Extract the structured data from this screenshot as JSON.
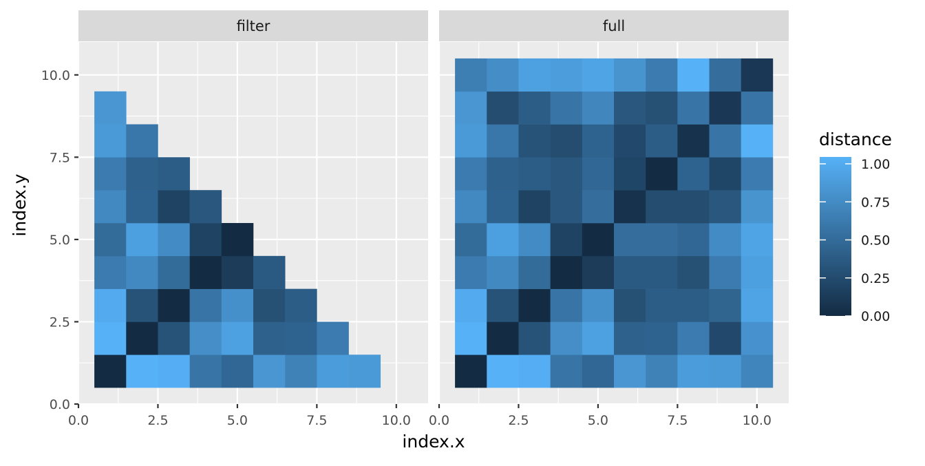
{
  "chart_data": {
    "type": "heatmap",
    "xlabel": "index.x",
    "ylabel": "index.y",
    "xlim": [
      0,
      11
    ],
    "ylim": [
      0,
      11
    ],
    "x_ticks": [
      "0.0",
      "2.5",
      "5.0",
      "7.5",
      "10.0"
    ],
    "y_ticks": [
      "0.0",
      "2.5",
      "5.0",
      "7.5",
      "10.0"
    ],
    "x_tick_values": [
      0,
      2.5,
      5,
      7.5,
      10
    ],
    "y_tick_values": [
      0,
      2.5,
      5,
      7.5,
      10
    ],
    "legend": {
      "title": "distance",
      "position": "right",
      "low_color": "#132B43",
      "high_color": "#56B1F7",
      "ticks": [
        "0.00",
        "0.25",
        "0.50",
        "0.75",
        "1.00"
      ],
      "tick_values": [
        0,
        0.25,
        0.5,
        0.75,
        1.0
      ]
    },
    "panels": [
      {
        "label": "filter",
        "rows": [
          {
            "y": 1,
            "values": [
              0.0,
              1.0,
              0.98,
              0.55,
              0.45,
              0.8,
              0.65,
              0.84,
              0.83
            ]
          },
          {
            "y": 2,
            "values": [
              1.0,
              0.0,
              0.3,
              0.74,
              0.88,
              0.4,
              0.42,
              0.6
            ]
          },
          {
            "y": 3,
            "values": [
              0.95,
              0.3,
              0.0,
              0.55,
              0.75,
              0.28,
              0.37
            ]
          },
          {
            "y": 4,
            "values": [
              0.6,
              0.7,
              0.48,
              0.0,
              0.13,
              0.35
            ]
          },
          {
            "y": 5,
            "values": [
              0.48,
              0.87,
              0.72,
              0.18,
              0.0
            ]
          },
          {
            "y": 6,
            "values": [
              0.7,
              0.42,
              0.18,
              0.33
            ]
          },
          {
            "y": 7,
            "values": [
              0.6,
              0.4,
              0.37
            ]
          },
          {
            "y": 8,
            "values": [
              0.83,
              0.57
            ]
          },
          {
            "y": 9,
            "values": [
              0.8
            ]
          }
        ]
      },
      {
        "label": "full",
        "rows": [
          {
            "y": 1,
            "values": [
              0.0,
              1.0,
              0.98,
              0.55,
              0.45,
              0.8,
              0.65,
              0.84,
              0.83,
              0.67
            ]
          },
          {
            "y": 2,
            "values": [
              1.0,
              0.0,
              0.3,
              0.74,
              0.88,
              0.4,
              0.42,
              0.6,
              0.22,
              0.77
            ]
          },
          {
            "y": 3,
            "values": [
              0.95,
              0.3,
              0.0,
              0.55,
              0.75,
              0.28,
              0.37,
              0.37,
              0.43,
              0.9
            ]
          },
          {
            "y": 4,
            "values": [
              0.6,
              0.7,
              0.48,
              0.0,
              0.13,
              0.35,
              0.35,
              0.28,
              0.6,
              0.87
            ]
          },
          {
            "y": 5,
            "values": [
              0.48,
              0.87,
              0.72,
              0.18,
              0.0,
              0.5,
              0.5,
              0.45,
              0.72,
              0.9
            ]
          },
          {
            "y": 6,
            "values": [
              0.7,
              0.42,
              0.18,
              0.33,
              0.5,
              0.05,
              0.25,
              0.25,
              0.33,
              0.78
            ]
          },
          {
            "y": 7,
            "values": [
              0.6,
              0.4,
              0.37,
              0.33,
              0.45,
              0.2,
              0.0,
              0.42,
              0.2,
              0.6
            ]
          },
          {
            "y": 8,
            "values": [
              0.83,
              0.57,
              0.3,
              0.25,
              0.42,
              0.22,
              0.37,
              0.05,
              0.55,
              1.0
            ]
          },
          {
            "y": 9,
            "values": [
              0.8,
              0.25,
              0.37,
              0.55,
              0.68,
              0.33,
              0.28,
              0.55,
              0.1,
              0.55
            ]
          },
          {
            "y": 10,
            "values": [
              0.62,
              0.73,
              0.88,
              0.85,
              0.9,
              0.78,
              0.6,
              1.0,
              0.5,
              0.1
            ]
          }
        ]
      }
    ]
  }
}
